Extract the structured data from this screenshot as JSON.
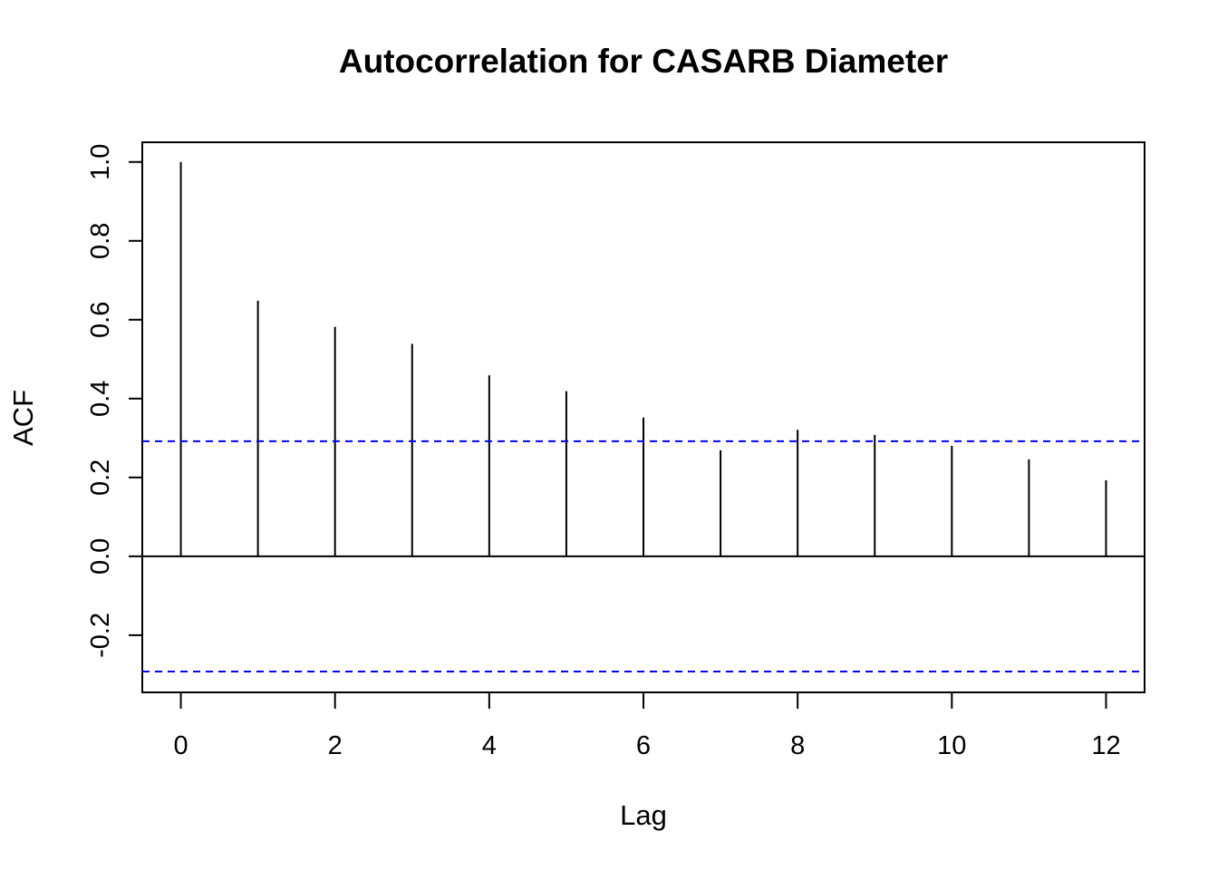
{
  "chart_data": {
    "type": "bar",
    "title": "Autocorrelation for CASARB Diameter",
    "xlabel": "Lag",
    "ylabel": "ACF",
    "xlim": [
      -0.5,
      12.5
    ],
    "ylim": [
      -0.345,
      1.05
    ],
    "x_ticks": [
      0,
      2,
      4,
      6,
      8,
      10,
      12
    ],
    "x_tick_labels": [
      "0",
      "2",
      "4",
      "6",
      "8",
      "10",
      "12"
    ],
    "y_ticks": [
      -0.2,
      0.0,
      0.2,
      0.4,
      0.6,
      0.8,
      1.0
    ],
    "y_tick_labels": [
      "-0.2",
      "0.0",
      "0.2",
      "0.4",
      "0.6",
      "0.8",
      "1.0"
    ],
    "lags": [
      0,
      1,
      2,
      3,
      4,
      5,
      6,
      7,
      8,
      9,
      10,
      11,
      12
    ],
    "values": [
      1.0,
      0.648,
      0.582,
      0.539,
      0.459,
      0.419,
      0.352,
      0.269,
      0.321,
      0.308,
      0.28,
      0.246,
      0.193
    ],
    "confidence_bounds": [
      0.292,
      -0.292
    ],
    "confidence_color": "#0000ff",
    "grid": false,
    "legend": "none"
  }
}
